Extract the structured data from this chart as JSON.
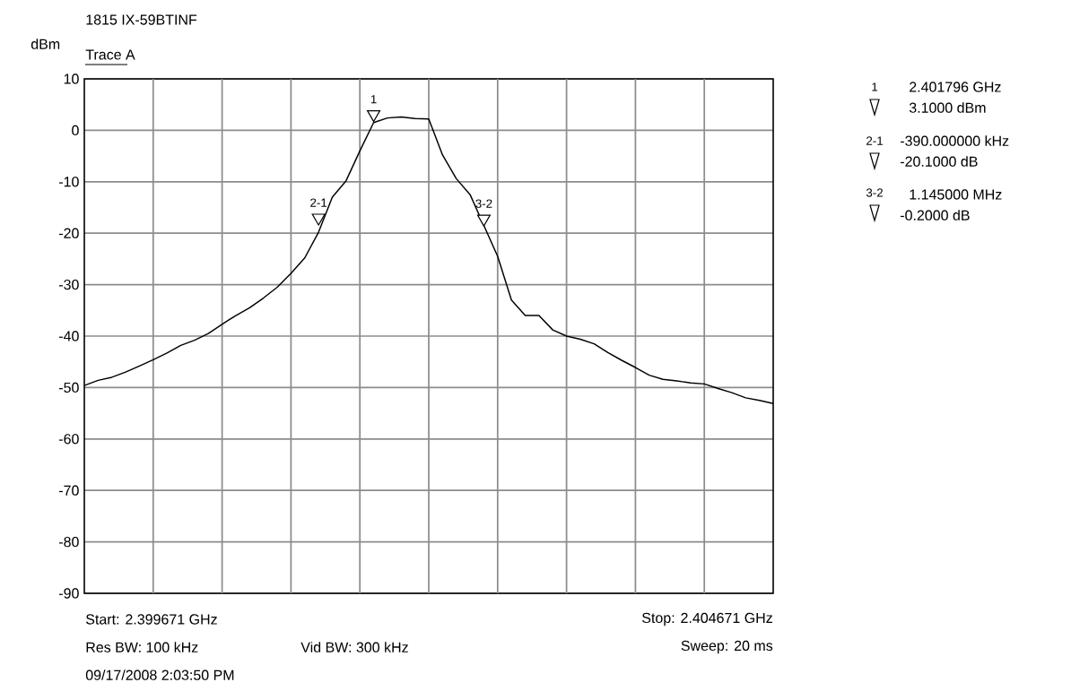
{
  "chart_data": {
    "type": "line",
    "title": "1815 IX-59BTINF",
    "subtitle": "Trace A",
    "ylabel": "dBm",
    "categories": [
      null,
      null,
      null,
      null,
      null,
      null,
      null,
      null,
      null,
      null,
      null,
      null,
      null,
      null,
      null,
      null,
      null,
      null,
      null,
      null,
      null,
      null,
      null,
      null,
      null,
      null,
      null,
      null,
      null,
      null,
      null,
      null,
      null,
      null,
      null,
      null,
      null,
      null,
      null,
      null,
      null,
      null,
      null,
      null,
      null,
      null,
      null,
      null,
      null,
      null,
      null
    ],
    "series": [
      {
        "color": "#000000",
        "values": [
          -49.6,
          -48.6,
          -48.0,
          -47.0,
          -45.8,
          -44.6,
          -43.3,
          -41.8,
          -40.8,
          -39.5,
          -37.7,
          -36.0,
          -34.5,
          -32.6,
          -30.5,
          -27.8,
          -24.8,
          -19.8,
          -13.0,
          -9.8,
          -4.0,
          1.5,
          2.4,
          2.6,
          2.3,
          2.2,
          -4.8,
          -9.4,
          -12.5,
          -18.5,
          -24.5,
          -33.0,
          -36.0,
          -36.0,
          -38.8,
          -40.0,
          -40.6,
          -41.5,
          -43.2,
          -44.7,
          -46.1,
          -47.6,
          -48.4,
          -48.7,
          -49.1,
          -49.3,
          -50.2,
          -51.0,
          -52.0,
          -52.5,
          -53.1
        ]
      },
      {
        "type": "scatter",
        "name": "1",
        "color": "#000000",
        "marker": "triangle",
        "values": [
          null,
          null,
          null,
          null,
          null,
          null,
          null,
          null,
          null,
          null,
          null,
          null,
          null,
          null,
          null,
          null,
          null,
          null,
          null,
          null,
          null,
          3.1,
          null,
          null,
          null,
          null,
          null,
          null,
          null,
          null,
          null,
          null,
          null,
          null,
          null,
          null,
          null,
          null,
          null,
          null,
          null,
          null,
          null,
          null,
          null,
          null,
          null,
          null,
          null,
          null,
          null
        ]
      },
      {
        "type": "scatter",
        "name": "2-1",
        "color": "#000000",
        "marker": "triangle",
        "values": [
          null,
          null,
          null,
          null,
          null,
          null,
          null,
          null,
          null,
          null,
          null,
          null,
          null,
          null,
          null,
          null,
          null,
          -17.0,
          null,
          null,
          null,
          null,
          null,
          null,
          null,
          null,
          null,
          null,
          null,
          null,
          null,
          null,
          null,
          null,
          null,
          null,
          null,
          null,
          null,
          null,
          null,
          null,
          null,
          null,
          null,
          null,
          null,
          null,
          null,
          null,
          null
        ]
      },
      {
        "type": "scatter",
        "name": "3-2",
        "color": "#000000",
        "marker": "triangle",
        "values": [
          null,
          null,
          null,
          null,
          null,
          null,
          null,
          null,
          null,
          null,
          null,
          null,
          null,
          null,
          null,
          null,
          null,
          null,
          null,
          null,
          null,
          null,
          null,
          null,
          null,
          null,
          null,
          null,
          null,
          -17.2,
          null,
          null,
          null,
          null,
          null,
          null,
          null,
          null,
          null,
          null,
          null,
          null,
          null,
          null,
          null,
          null,
          null,
          null,
          null,
          null,
          null
        ]
      }
    ],
    "ylim": [
      -90,
      10
    ],
    "yticks": [
      -90,
      -80,
      -70,
      -60,
      -50,
      -40,
      -30,
      -20,
      -10,
      0,
      10
    ],
    "tick_labels": "y",
    "grid": true,
    "marker": "none",
    "line_style": "solid",
    "annotations": [
      "1",
      "2.401796 GHz",
      "3.1000 dBm",
      "2-1",
      "-390.000000 kHz",
      "-20.1000 dB",
      "3-2",
      "1.145000 MHz",
      "-0.2000 dB",
      "Start: 2.399671 GHz",
      "Stop: 2.404671 GHz",
      "Res BW: 100 kHz",
      "Vid BW: 300 kHz",
      "Sweep: 20 ms",
      "09/17/2008 2:03:50 PM"
    ]
  }
}
